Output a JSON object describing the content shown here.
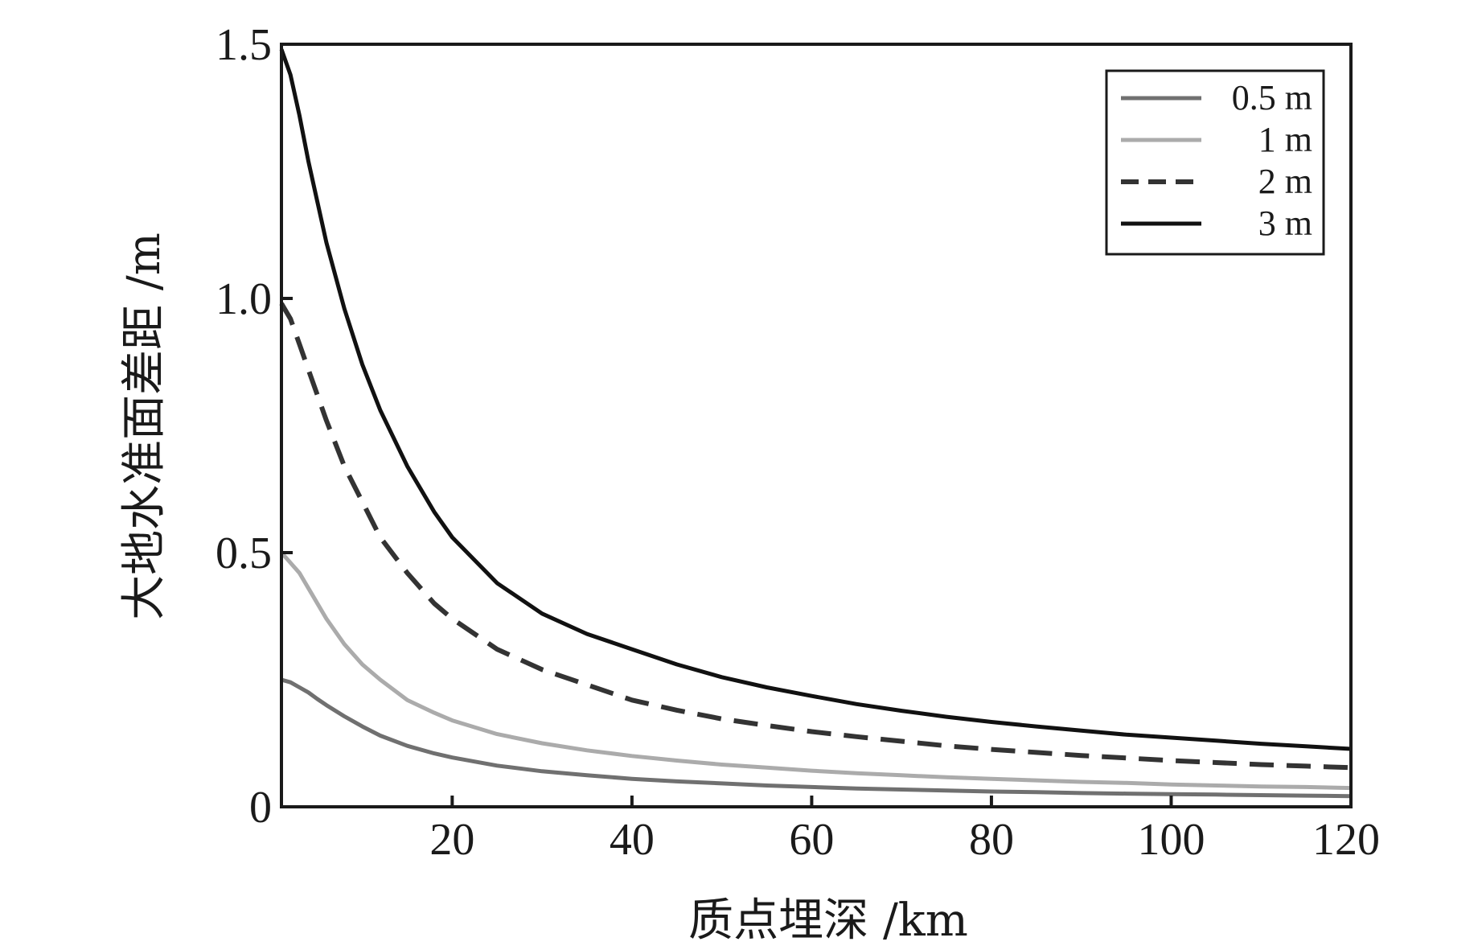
{
  "chart_data": {
    "type": "line",
    "title": "",
    "xlabel": "质点埋深 /km",
    "ylabel": "大地水准面差距 /m",
    "xlim": [
      1,
      120
    ],
    "ylim": [
      0,
      1.5
    ],
    "xticks": [
      20,
      40,
      60,
      80,
      100,
      120
    ],
    "yticks": [
      0,
      0.5,
      1.0,
      1.5
    ],
    "xtick_labels": [
      "20",
      "40",
      "60",
      "80",
      "100",
      "120"
    ],
    "ytick_labels": [
      "0",
      "0.5",
      "1.0",
      "1.5"
    ],
    "grid": false,
    "legend_position": "top-right",
    "x": [
      1,
      2,
      3,
      4,
      5,
      6,
      8,
      10,
      12,
      15,
      18,
      20,
      25,
      30,
      35,
      40,
      45,
      50,
      55,
      60,
      65,
      70,
      75,
      80,
      85,
      90,
      95,
      100,
      105,
      110,
      115,
      120
    ],
    "series": [
      {
        "name": "0.5 m",
        "color": "#707070",
        "dash": "solid",
        "values": [
          0.25,
          0.245,
          0.235,
          0.225,
          0.212,
          0.2,
          0.178,
          0.158,
          0.14,
          0.12,
          0.105,
          0.097,
          0.081,
          0.07,
          0.062,
          0.055,
          0.05,
          0.046,
          0.042,
          0.039,
          0.036,
          0.034,
          0.032,
          0.03,
          0.029,
          0.027,
          0.026,
          0.025,
          0.024,
          0.023,
          0.022,
          0.021
        ]
      },
      {
        "name": "1 m",
        "color": "#ababab",
        "dash": "solid",
        "values": [
          0.5,
          0.48,
          0.46,
          0.43,
          0.4,
          0.37,
          0.32,
          0.28,
          0.25,
          0.21,
          0.185,
          0.17,
          0.143,
          0.125,
          0.111,
          0.1,
          0.091,
          0.083,
          0.077,
          0.071,
          0.066,
          0.062,
          0.058,
          0.055,
          0.052,
          0.049,
          0.047,
          0.044,
          0.042,
          0.04,
          0.039,
          0.037
        ]
      },
      {
        "name": "2 m",
        "color": "#333333",
        "dash": "dashed",
        "values": [
          0.99,
          0.96,
          0.91,
          0.86,
          0.81,
          0.76,
          0.67,
          0.6,
          0.53,
          0.46,
          0.4,
          0.37,
          0.31,
          0.27,
          0.24,
          0.21,
          0.19,
          0.173,
          0.16,
          0.148,
          0.138,
          0.129,
          0.12,
          0.113,
          0.107,
          0.101,
          0.096,
          0.091,
          0.087,
          0.083,
          0.08,
          0.077
        ]
      },
      {
        "name": "3 m",
        "color": "#111111",
        "dash": "solid",
        "values": [
          1.49,
          1.44,
          1.36,
          1.27,
          1.19,
          1.11,
          0.98,
          0.87,
          0.78,
          0.67,
          0.58,
          0.53,
          0.44,
          0.38,
          0.34,
          0.31,
          0.28,
          0.255,
          0.235,
          0.218,
          0.202,
          0.189,
          0.177,
          0.167,
          0.158,
          0.15,
          0.142,
          0.136,
          0.13,
          0.124,
          0.119,
          0.114
        ]
      }
    ]
  }
}
